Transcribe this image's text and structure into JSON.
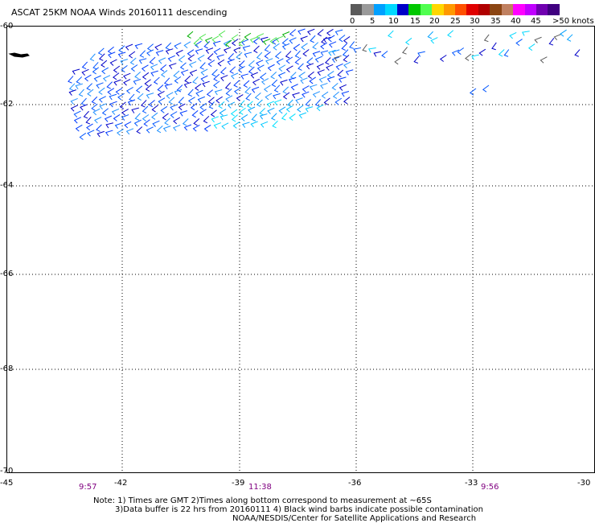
{
  "header": {
    "title": "ASCAT 25KM NOAA Winds 20160111 descending"
  },
  "legend": {
    "colors": [
      "#5a5a5a",
      "#9a9a9a",
      "#00a0ff",
      "#00d8ff",
      "#0000c8",
      "#00c800",
      "#50ff50",
      "#ffd700",
      "#ff9900",
      "#ff5000",
      "#e00000",
      "#b00000",
      "#8b4513",
      "#c08060",
      "#ff00ff",
      "#c000ff",
      "#7000b0",
      "#400080"
    ],
    "labels": [
      "0",
      "5",
      "10",
      "15",
      "20",
      "25",
      "30",
      "35",
      "40",
      "45",
      ">50 knots"
    ]
  },
  "axes": {
    "lat_labels": [
      "-60",
      "-62",
      "-64",
      "-66",
      "-68",
      "-70"
    ],
    "lon_labels": [
      "-45",
      "-42",
      "-39",
      "-36",
      "-33",
      "-30"
    ],
    "lat_range": [
      -70,
      -60
    ],
    "lon_range": [
      -45,
      -30
    ]
  },
  "times": [
    "9:57",
    "11:38",
    "9:56"
  ],
  "notes": {
    "line1": "Note: 1) Times are GMT 2)Times along bottom correspond to measurement at ~65S",
    "line2": "3)Data buffer is 22 hrs from 20160111 4) Black wind barbs indicate possible contamination",
    "line3": "NOAA/NESDIS/Center for Satellite Applications and Research"
  }
}
